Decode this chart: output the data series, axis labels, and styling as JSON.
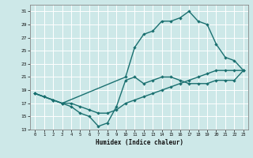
{
  "xlabel": "Humidex (Indice chaleur)",
  "bg_color": "#cde8e8",
  "grid_color": "#ffffff",
  "line_color": "#1a7070",
  "marker": "D",
  "markersize": 2.2,
  "linewidth": 1.0,
  "xlim": [
    -0.5,
    23.5
  ],
  "ylim": [
    13,
    32
  ],
  "xticks": [
    0,
    1,
    2,
    3,
    4,
    5,
    6,
    7,
    8,
    9,
    10,
    11,
    12,
    13,
    14,
    15,
    16,
    17,
    18,
    19,
    20,
    21,
    22,
    23
  ],
  "yticks": [
    13,
    15,
    17,
    19,
    21,
    23,
    25,
    27,
    29,
    31
  ],
  "line1_x": [
    0,
    1,
    2,
    3,
    4,
    5,
    6,
    7,
    8,
    9,
    10,
    11,
    12,
    13,
    14,
    15,
    16,
    17,
    18,
    19,
    20,
    21,
    22,
    23
  ],
  "line1_y": [
    18.5,
    18.0,
    17.5,
    17.0,
    17.0,
    16.5,
    16.0,
    15.5,
    15.5,
    16.0,
    17.0,
    17.5,
    18.0,
    18.5,
    19.0,
    19.5,
    20.0,
    20.5,
    21.0,
    21.5,
    22.0,
    22.0,
    22.0,
    22.0
  ],
  "line2_x": [
    0,
    1,
    2,
    3,
    4,
    5,
    6,
    7,
    8,
    9,
    10,
    11,
    12,
    13,
    14,
    15,
    16,
    17,
    18,
    19,
    20,
    21,
    22,
    23
  ],
  "line2_y": [
    18.5,
    18.0,
    17.5,
    17.0,
    16.5,
    15.5,
    15.0,
    13.5,
    14.0,
    16.5,
    20.5,
    21.0,
    20.0,
    20.5,
    21.0,
    21.0,
    20.5,
    20.0,
    20.0,
    20.0,
    20.5,
    20.5,
    20.5,
    22.0
  ],
  "line3_x": [
    0,
    2,
    3,
    10,
    11,
    12,
    13,
    14,
    15,
    16,
    17,
    18,
    19,
    20,
    21,
    22,
    23
  ],
  "line3_y": [
    18.5,
    17.5,
    17.0,
    21.0,
    25.5,
    27.5,
    28.0,
    29.5,
    29.5,
    30.0,
    31.0,
    29.5,
    29.0,
    26.0,
    24.0,
    23.5,
    22.0
  ]
}
